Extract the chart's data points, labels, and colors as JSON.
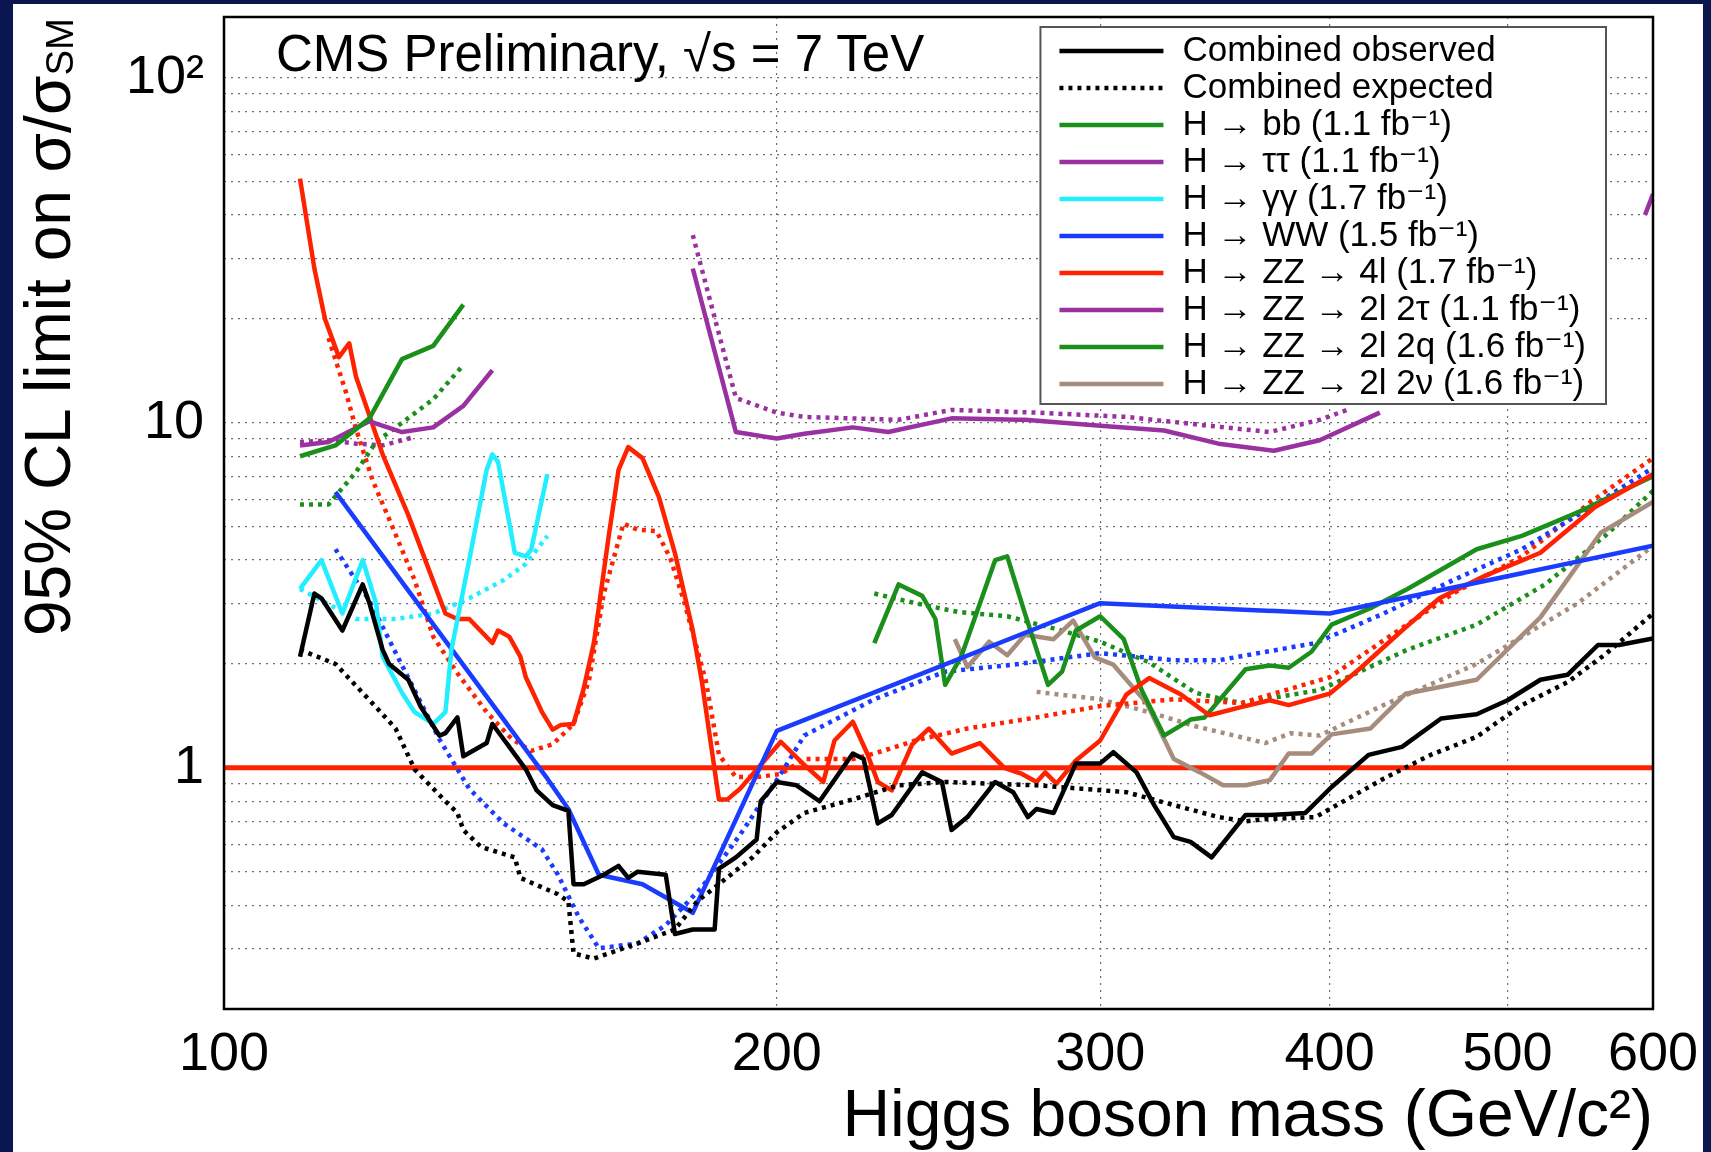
{
  "chart_data": {
    "type": "line",
    "title": "CMS Preliminary, √s = 7 TeV",
    "xlabel": "Higgs boson mass (GeV/c²)",
    "ylabel": "95% CL limit on σ/σ$_{SM}$",
    "log": "xy",
    "xlim": [
      100,
      600
    ],
    "ylim": [
      0.2,
      150
    ],
    "xticks": [
      100,
      200,
      300,
      400,
      500,
      600
    ],
    "yticks": [
      {
        "value": 0.2,
        "label": null
      },
      {
        "value": 0.3,
        "label": null
      },
      {
        "value": 0.4,
        "label": null
      },
      {
        "value": 0.5,
        "label": null
      },
      {
        "value": 0.6,
        "label": null
      },
      {
        "value": 0.7,
        "label": null
      },
      {
        "value": 0.8,
        "label": null
      },
      {
        "value": 0.9,
        "label": null
      },
      1,
      {
        "value": 2,
        "label": null
      },
      {
        "value": 3,
        "label": null
      },
      {
        "value": 4,
        "label": null
      },
      {
        "value": 5,
        "label": null
      },
      {
        "value": 6,
        "label": null
      },
      {
        "value": 7,
        "label": null
      },
      {
        "value": 8,
        "label": null
      },
      {
        "value": 9,
        "label": null
      },
      10,
      {
        "value": 20,
        "label": null
      },
      {
        "value": 30,
        "label": null
      },
      {
        "value": 40,
        "label": null
      },
      {
        "value": 50,
        "label": null
      },
      {
        "value": 60,
        "label": null
      },
      {
        "value": 70,
        "label": null
      },
      {
        "value": 80,
        "label": null
      },
      {
        "value": 90,
        "label": null
      },
      {
        "value": 100,
        "label": "10²"
      }
    ],
    "grid": true,
    "legend": "top right",
    "ref_lines": [
      {
        "axis": "y",
        "value": 1,
        "color": "#ff2200"
      }
    ],
    "series": [
      {
        "name": "Combined observed",
        "color": "#000000",
        "x": [
          110,
          112,
          113,
          116,
          119,
          120,
          122,
          123,
          126,
          128,
          131,
          132,
          134,
          135,
          139,
          140,
          142,
          146,
          148,
          151,
          154,
          155,
          157,
          161,
          164,
          166,
          168,
          174,
          176,
          180,
          185,
          186,
          190,
          195,
          196,
          200,
          205,
          211,
          220,
          223,
          227,
          231,
          240,
          246,
          249,
          254,
          263,
          269,
          274,
          277,
          283,
          291,
          300,
          305,
          314,
          321,
          329,
          336,
          345,
          360,
          371,
          388,
          401,
          420,
          438,
          460,
          481,
          500,
          521,
          539,
          560,
          575,
          600
        ],
        "values": [
          2.1,
          3.2,
          3.1,
          2.5,
          3.4,
          3.0,
          2.2,
          2.0,
          1.8,
          1.5,
          1.24,
          1.26,
          1.4,
          1.08,
          1.18,
          1.34,
          1.21,
          0.99,
          0.86,
          0.78,
          0.75,
          0.46,
          0.46,
          0.49,
          0.52,
          0.48,
          0.5,
          0.49,
          0.33,
          0.34,
          0.34,
          0.51,
          0.55,
          0.62,
          0.8,
          0.91,
          0.89,
          0.8,
          1.1,
          1.06,
          0.69,
          0.73,
          0.97,
          0.91,
          0.66,
          0.72,
          0.91,
          0.85,
          0.72,
          0.76,
          0.74,
          1.03,
          1.03,
          1.11,
          0.97,
          0.78,
          0.63,
          0.61,
          0.55,
          0.73,
          0.73,
          0.74,
          0.88,
          1.09,
          1.15,
          1.39,
          1.43,
          1.57,
          1.8,
          1.86,
          2.27,
          2.27,
          2.37
        ]
      },
      {
        "name": "Combined expected",
        "color": "#000000",
        "line_style": "dotted",
        "x": [
          110,
          115,
          121,
          124,
          127,
          132,
          134,
          135,
          138,
          144,
          145,
          152,
          154,
          155,
          159,
          168,
          176,
          181,
          194,
          200,
          207,
          220,
          233,
          247,
          261,
          277,
          293,
          310,
          329,
          348,
          360,
          369,
          393,
          428,
          454,
          481,
          509,
          539,
          565,
          600
        ],
        "values": [
          2.2,
          2.0,
          1.5,
          1.3,
          0.99,
          0.8,
          0.74,
          0.66,
          0.59,
          0.55,
          0.48,
          0.43,
          0.41,
          0.29,
          0.28,
          0.31,
          0.34,
          0.41,
          0.55,
          0.65,
          0.74,
          0.81,
          0.89,
          0.91,
          0.9,
          0.89,
          0.87,
          0.85,
          0.78,
          0.72,
          0.7,
          0.71,
          0.72,
          0.93,
          1.09,
          1.23,
          1.52,
          1.77,
          2.13,
          2.8
        ]
      },
      {
        "name": "H → bb (1.1 fb⁻¹)",
        "color": "#1a8f1a",
        "x": [
          110,
          115,
          120,
          125,
          130,
          135
        ],
        "values": [
          8.0,
          8.6,
          10.3,
          15.3,
          16.7,
          22
        ]
      },
      {
        "name": "H → ττ (1.1 fb⁻¹)",
        "color": "#9932a0",
        "x": [
          110,
          114,
          120,
          125,
          130,
          135,
          140
        ],
        "values": [
          8.6,
          8.8,
          10.1,
          9.4,
          9.7,
          11.2,
          14.2
        ]
      },
      {
        "name": "H → γγ (1.7 fb⁻¹)",
        "color": "#22eeff",
        "x": [
          110,
          113,
          116,
          119,
          121,
          122,
          125,
          127,
          130,
          132,
          133,
          136,
          139,
          140,
          141,
          144,
          146,
          147,
          150
        ],
        "values": [
          3.3,
          4.0,
          2.8,
          4.0,
          3.0,
          2.1,
          1.65,
          1.45,
          1.34,
          1.45,
          2.2,
          4.0,
          7.3,
          8.1,
          7.7,
          4.2,
          4.1,
          4.3,
          7.1
        ]
      },
      {
        "name": "H → WW (1.5 fb⁻¹)",
        "color": "#1a3cff",
        "x": [
          115,
          150,
          154,
          160,
          169,
          180,
          200,
          300,
          400,
          438,
          600
        ],
        "values": [
          6.3,
          0.93,
          0.76,
          0.49,
          0.46,
          0.38,
          1.28,
          3.0,
          2.8,
          3.1,
          4.4
        ]
      },
      {
        "name": "H → ZZ → 4l (1.7 fb⁻¹)",
        "color": "#ff2200",
        "x": [
          110,
          112,
          113.5,
          115.5,
          117,
          118,
          120,
          122,
          126,
          132,
          134,
          136,
          140,
          141,
          143,
          145,
          146,
          149,
          151,
          152.5,
          155,
          157,
          159,
          162,
          164,
          166,
          169,
          172.5,
          176,
          180,
          182,
          186,
          188,
          191,
          201,
          207,
          212,
          215,
          220,
          224,
          227,
          231,
          237,
          242,
          249,
          258,
          266,
          272,
          277,
          280,
          284,
          291,
          300,
          310,
          319,
          332,
          344,
          358,
          371,
          380,
          400,
          416,
          438,
          459,
          486,
          521,
          558,
          600
        ],
        "values": [
          51,
          28,
          20,
          15.5,
          17,
          13.6,
          10.5,
          8.1,
          5.4,
          2.8,
          2.7,
          2.7,
          2.3,
          2.5,
          2.4,
          2.1,
          1.83,
          1.45,
          1.29,
          1.33,
          1.34,
          1.7,
          2.3,
          4.7,
          7.3,
          8.5,
          7.9,
          6.1,
          4.2,
          2.5,
          1.8,
          0.81,
          0.81,
          0.87,
          1.19,
          1.02,
          0.91,
          1.2,
          1.36,
          1.1,
          0.91,
          0.86,
          1.17,
          1.3,
          1.1,
          1.18,
          1.0,
          0.96,
          0.91,
          0.97,
          0.9,
          1.05,
          1.2,
          1.63,
          1.82,
          1.63,
          1.42,
          1.5,
          1.57,
          1.52,
          1.64,
          1.95,
          2.5,
          3.1,
          3.6,
          4.2,
          5.7,
          7.1
        ]
      },
      {
        "name": "H → ZZ → 2l 2τ (1.1 fb⁻¹)",
        "color": "#9932a0",
        "x": [
          180,
          190,
          200,
          207,
          220,
          230,
          249,
          273,
          300,
          325,
          348,
          373,
          395,
          426,
          500,
          594,
          600
        ],
        "values": [
          28,
          9.4,
          9.0,
          9.3,
          9.7,
          9.4,
          10.3,
          10.2,
          9.8,
          9.5,
          8.7,
          8.3,
          8.9,
          10.7,
          null,
          40,
          46
        ]
      },
      {
        "name": "H → ZZ → 2l 2q (1.6 fb⁻¹)",
        "color": "#1a8f1a",
        "x": [
          226,
          233,
          240,
          244,
          247,
          252,
          263,
          267,
          273,
          281,
          286,
          291,
          300,
          309,
          316,
          325,
          336,
          342,
          360,
          371,
          380,
          391,
          401,
          421,
          441,
          481,
          509,
          546,
          600
        ],
        "values": [
          2.3,
          3.4,
          3.15,
          2.7,
          1.74,
          2.1,
          4.0,
          4.1,
          2.8,
          1.74,
          1.9,
          2.5,
          2.75,
          2.36,
          1.68,
          1.24,
          1.38,
          1.4,
          1.93,
          1.98,
          1.95,
          2.17,
          2.6,
          2.9,
          3.3,
          4.3,
          4.7,
          5.5,
          7.0
        ]
      },
      {
        "name": "H → ZZ → 2l 2ν (1.6 fb⁻¹)",
        "color": "#a58c7d",
        "x": [
          250,
          254,
          261,
          267,
          273,
          283,
          290,
          298,
          305,
          318,
          329,
          340,
          350,
          360,
          371,
          380,
          391,
          401,
          421,
          440,
          481,
          521,
          562,
          600
        ],
        "values": [
          2.36,
          1.96,
          2.32,
          2.12,
          2.43,
          2.36,
          2.67,
          2.09,
          1.99,
          1.54,
          1.06,
          0.97,
          0.89,
          0.89,
          0.92,
          1.1,
          1.1,
          1.25,
          1.3,
          1.64,
          1.8,
          2.73,
          4.8,
          5.9
        ]
      },
      {
        "color": "#1a8f1a",
        "line_style": "dotted",
        "x": [
          110,
          114,
          118,
          121,
          125,
          130,
          135
        ],
        "values": [
          5.8,
          5.8,
          7.2,
          8.8,
          10.0,
          11.7,
          14.7
        ]
      },
      {
        "color": "#9932a0",
        "line_style": "dotted",
        "x": [
          110,
          114,
          118,
          122,
          127
        ],
        "values": [
          8.8,
          8.9,
          8.7,
          8.6,
          9.1
        ]
      },
      {
        "color": "#22eeff",
        "line_style": "dotted",
        "x": [
          110,
          118,
          124,
          130,
          136,
          142,
          146,
          150
        ],
        "values": [
          3.3,
          2.7,
          2.7,
          2.8,
          3.1,
          3.5,
          3.9,
          4.7
        ]
      },
      {
        "color": "#1a3cff",
        "line_style": "dotted",
        "x": [
          115,
          120,
          131,
          136,
          142,
          149,
          152,
          156,
          160,
          168,
          174,
          182,
          191,
          201,
          207,
          226,
          247,
          269,
          300,
          329,
          348,
          393,
          428,
          467,
          509,
          555,
          600
        ],
        "values": [
          4.3,
          3.05,
          1.21,
          0.87,
          0.69,
          0.58,
          0.49,
          0.37,
          0.3,
          0.31,
          0.35,
          0.45,
          0.64,
          0.96,
          1.24,
          1.58,
          1.9,
          1.99,
          2.15,
          2.05,
          2.05,
          2.3,
          2.8,
          3.5,
          4.3,
          5.7,
          7.4
        ]
      },
      {
        "color": "#ff2200",
        "line_style": "dotted",
        "x": [
          114,
          116.5,
          118,
          120.5,
          123.5,
          127,
          130,
          134,
          139,
          143.5,
          147,
          151,
          155,
          158,
          161,
          165,
          168,
          172,
          175,
          178,
          183,
          186,
          190,
          195,
          201,
          207,
          220,
          226,
          238,
          254,
          277,
          300,
          329,
          358,
          400,
          428,
          467,
          509,
          555,
          600
        ],
        "values": [
          17.6,
          12.3,
          9.6,
          6.8,
          5.0,
          3.5,
          2.4,
          1.88,
          1.45,
          1.21,
          1.12,
          1.17,
          1.34,
          1.78,
          3.2,
          5.1,
          4.9,
          4.85,
          4.05,
          3.05,
          1.78,
          1.09,
          0.94,
          0.94,
          0.96,
          1.06,
          1.06,
          1.1,
          1.2,
          1.3,
          1.4,
          1.51,
          1.58,
          1.54,
          1.83,
          2.34,
          3.2,
          4.1,
          5.9,
          7.9
        ]
      },
      {
        "color": "#9932a0",
        "line_style": "dotted",
        "x": [
          180,
          190,
          200,
          207,
          233,
          249,
          277,
          310,
          338,
          371,
          395,
          409
        ],
        "values": [
          35,
          11.8,
          10.7,
          10.4,
          10.2,
          10.9,
          10.7,
          10.4,
          9.9,
          9.4,
          10.2,
          10.9
        ]
      },
      {
        "color": "#1a8f1a",
        "line_style": "dotted",
        "x": [
          226,
          238,
          251,
          267,
          285,
          300,
          319,
          338,
          358,
          395,
          441,
          481,
          524,
          565,
          600
        ],
        "values": [
          3.2,
          3.0,
          2.83,
          2.75,
          2.51,
          2.32,
          2.02,
          1.65,
          1.54,
          1.68,
          2.2,
          2.6,
          3.4,
          4.7,
          6.35
        ]
      },
      {
        "color": "#a58c7d",
        "line_style": "dotted",
        "x": [
          277,
          300,
          319,
          338,
          369,
          381,
          395,
          428,
          481,
          546,
          600
        ],
        "values": [
          1.66,
          1.58,
          1.45,
          1.32,
          1.18,
          1.26,
          1.24,
          1.52,
          2.0,
          3.0,
          4.4
        ]
      }
    ]
  }
}
